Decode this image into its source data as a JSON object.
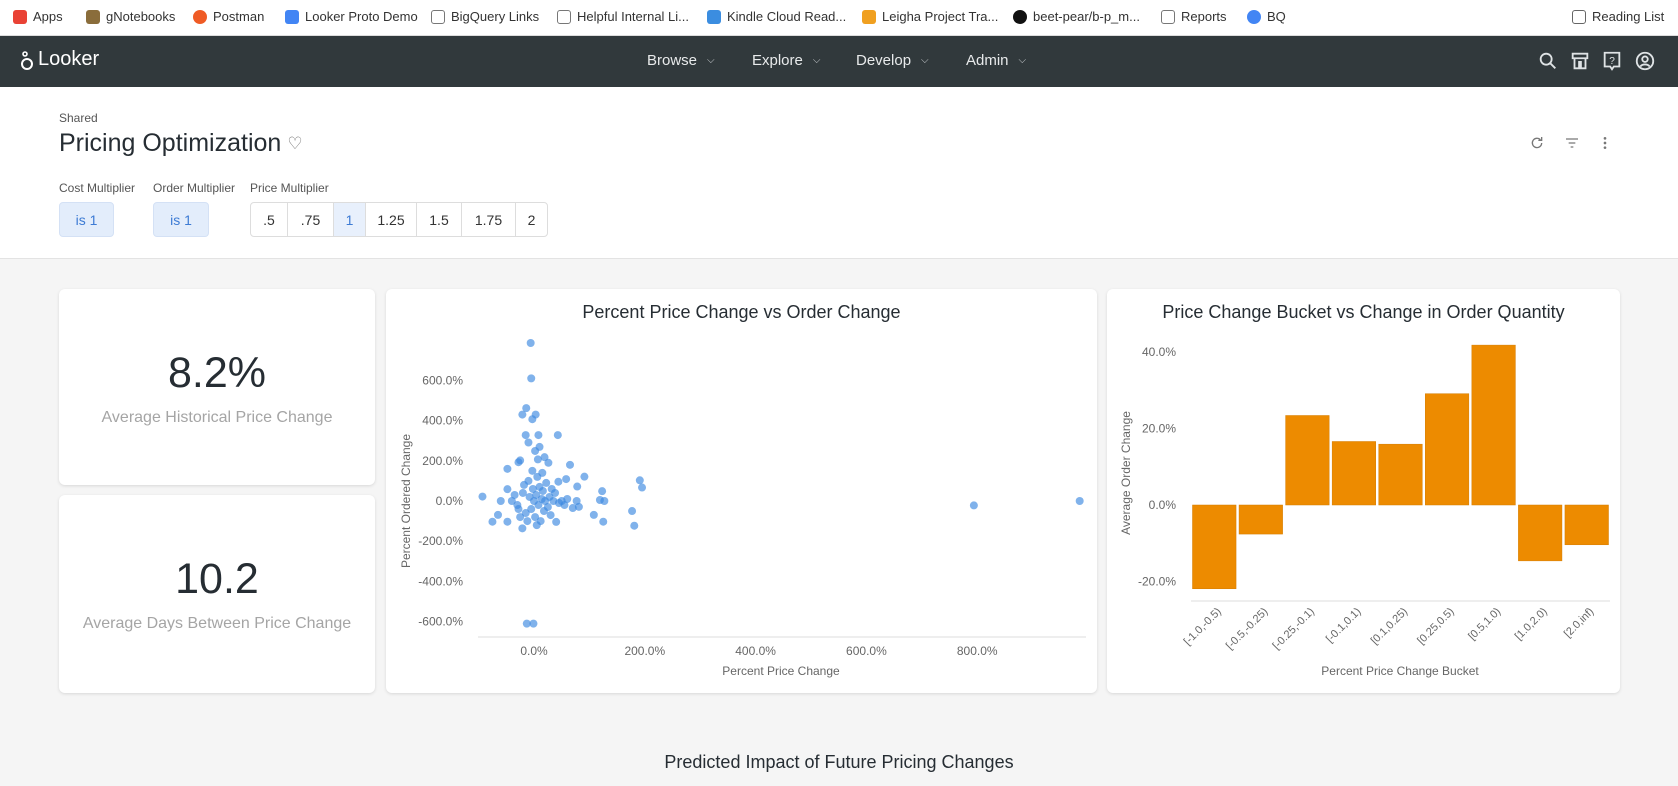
{
  "bookmarks": [
    {
      "label": "Apps",
      "icon": "apps-grid-icon"
    },
    {
      "label": "gNotebooks",
      "icon": "notebook-icon"
    },
    {
      "label": "Postman",
      "icon": "postman-icon"
    },
    {
      "label": "Looker Proto Demo",
      "icon": "looker-icon"
    },
    {
      "label": "BigQuery Links",
      "icon": "folder-icon"
    },
    {
      "label": "Helpful Internal Li...",
      "icon": "folder-icon"
    },
    {
      "label": "Kindle Cloud Read...",
      "icon": "kindle-icon"
    },
    {
      "label": "Leigha Project Tra...",
      "icon": "project-icon"
    },
    {
      "label": "beet-pear/b-p_m...",
      "icon": "github-icon"
    },
    {
      "label": "Reports",
      "icon": "folder-icon"
    },
    {
      "label": "BQ",
      "icon": "bigquery-icon"
    }
  ],
  "reading_list": "Reading List",
  "nav": {
    "logo": "Looker",
    "items": [
      "Browse",
      "Explore",
      "Develop",
      "Admin"
    ]
  },
  "header": {
    "breadcrumb": "Shared",
    "title": "Pricing Optimization"
  },
  "filters": {
    "cost": {
      "label": "Cost Multiplier",
      "value": "is 1"
    },
    "order": {
      "label": "Order Multiplier",
      "value": "is 1"
    },
    "price": {
      "label": "Price Multiplier",
      "options": [
        ".5",
        ".75",
        "1",
        "1.25",
        "1.5",
        "1.75",
        "2"
      ],
      "selected": "1"
    }
  },
  "kpis": [
    {
      "value": "8.2%",
      "label": "Average Historical Price Change"
    },
    {
      "value": "10.2",
      "label": "Average Days Between Price Change"
    }
  ],
  "footer_title": "Predicted Impact of Future Pricing Changes",
  "colors": {
    "scatter": "#3c89e0",
    "bar": "#ed8b00",
    "nav_bg": "#31393c",
    "chip_bg": "#e3edfb"
  },
  "chart_data": [
    {
      "type": "scatter",
      "title": "Percent Price Change vs Order Change",
      "xlabel": "Percent Price Change",
      "ylabel": "Percent Ordered Change",
      "xlim": [
        -100,
        1000
      ],
      "ylim": [
        -680,
        820
      ],
      "xticks": [
        "0.0%",
        "200.0%",
        "400.0%",
        "600.0%",
        "800.0%"
      ],
      "yticks": [
        "-600.0%",
        "-400.0%",
        "-200.0%",
        "0.0%",
        "200.0%",
        "400.0%",
        "600.0%"
      ],
      "points": [
        [
          -6,
          786
        ],
        [
          -5,
          610
        ],
        [
          -14,
          462
        ],
        [
          -21,
          430
        ],
        [
          3,
          430
        ],
        [
          -3,
          407
        ],
        [
          -15,
          328
        ],
        [
          8,
          328
        ],
        [
          43,
          328
        ],
        [
          -10,
          291
        ],
        [
          10,
          269
        ],
        [
          2,
          249
        ],
        [
          19,
          218
        ],
        [
          7,
          207
        ],
        [
          26,
          190
        ],
        [
          -25,
          202
        ],
        [
          -28,
          193
        ],
        [
          -48,
          160
        ],
        [
          65,
          180
        ],
        [
          91,
          121
        ],
        [
          44,
          96
        ],
        [
          58,
          109
        ],
        [
          78,
          72
        ],
        [
          -48,
          59
        ],
        [
          -93,
          22
        ],
        [
          123,
          49
        ],
        [
          119,
          5
        ],
        [
          127,
          0
        ],
        [
          191,
          103
        ],
        [
          195,
          67
        ],
        [
          177,
          -50
        ],
        [
          181,
          -123
        ],
        [
          108,
          -69
        ],
        [
          125,
          -103
        ],
        [
          -75,
          -103
        ],
        [
          -65,
          -69
        ],
        [
          -48,
          -103
        ],
        [
          -21,
          -136
        ],
        [
          40,
          -104
        ],
        [
          -13,
          -610
        ],
        [
          -1,
          -610
        ],
        [
          794,
          -22
        ],
        [
          985,
          0
        ],
        [
          77,
          0
        ],
        [
          81,
          -29
        ],
        [
          70,
          -35
        ],
        [
          -60,
          0
        ],
        [
          -40,
          0
        ],
        [
          -30,
          -20
        ],
        [
          -20,
          40
        ],
        [
          -15,
          -60
        ],
        [
          -10,
          100
        ],
        [
          -8,
          20
        ],
        [
          -5,
          -40
        ],
        [
          -2,
          60
        ],
        [
          0,
          0
        ],
        [
          2,
          -80
        ],
        [
          4,
          30
        ],
        [
          6,
          120
        ],
        [
          8,
          -20
        ],
        [
          10,
          70
        ],
        [
          12,
          -100
        ],
        [
          14,
          10
        ],
        [
          16,
          50
        ],
        [
          18,
          -50
        ],
        [
          20,
          0
        ],
        [
          22,
          90
        ],
        [
          25,
          -30
        ],
        [
          28,
          20
        ],
        [
          30,
          -70
        ],
        [
          35,
          0
        ],
        [
          38,
          40
        ],
        [
          45,
          -10
        ],
        [
          50,
          0
        ],
        [
          55,
          -20
        ],
        [
          60,
          10
        ],
        [
          -25,
          -80
        ],
        [
          -18,
          80
        ],
        [
          -12,
          -100
        ],
        [
          -3,
          150
        ],
        [
          5,
          -120
        ],
        [
          15,
          140
        ],
        [
          -35,
          30
        ],
        [
          32,
          60
        ],
        [
          -28,
          -40
        ]
      ]
    },
    {
      "type": "bar",
      "title": "Price Change Bucket vs Change in Order Quantity",
      "xlabel": "Percent Price Change Bucket",
      "ylabel": "Average Order Change",
      "categories": [
        "[-1.0,-0.5)",
        "[-0.5,-0.25)",
        "[-0.25,-0.1)",
        "[-0.1,0.1)",
        "[0.1,0.25)",
        "[0.25,0.5)",
        "[0.5,1.0)",
        "[1.0,2.0)",
        "[2.0,inf)"
      ],
      "values": [
        -21.9,
        -7.6,
        23.4,
        16.6,
        15.9,
        29.1,
        41.8,
        -14.6,
        -10.4
      ],
      "ylim": [
        -25,
        45
      ],
      "yticks": [
        "-20.0%",
        "0.0%",
        "20.0%",
        "40.0%"
      ]
    }
  ]
}
